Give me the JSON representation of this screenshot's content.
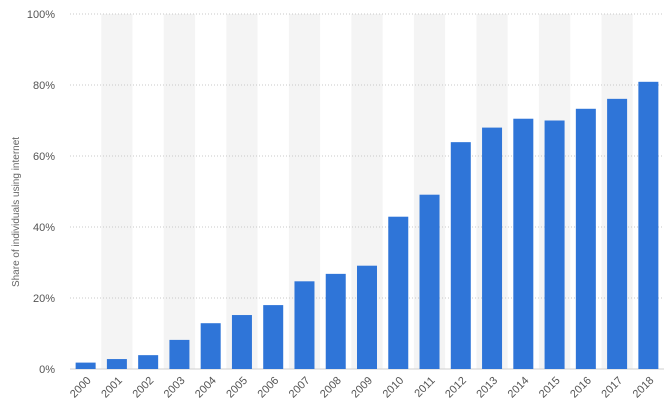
{
  "chart_data": {
    "type": "bar",
    "title": "",
    "xlabel": "",
    "ylabel": "Share of individuals using internet",
    "categories": [
      "2000",
      "2001",
      "2002",
      "2003",
      "2004",
      "2005",
      "2006",
      "2007",
      "2008",
      "2009",
      "2010",
      "2011",
      "2012",
      "2013",
      "2014",
      "2015",
      "2016",
      "2017",
      "2018"
    ],
    "values": [
      1.8,
      2.8,
      3.9,
      8.2,
      12.9,
      15.2,
      18.0,
      24.7,
      26.8,
      29.1,
      42.9,
      49.1,
      63.9,
      68.0,
      70.5,
      70.0,
      73.3,
      76.1,
      80.9
    ],
    "ylim": [
      0,
      100
    ],
    "yticks": [
      {
        "value": 0,
        "label": "0%"
      },
      {
        "value": 20,
        "label": "20%"
      },
      {
        "value": 40,
        "label": "40%"
      },
      {
        "value": 60,
        "label": "60%"
      },
      {
        "value": 80,
        "label": "80%"
      },
      {
        "value": 100,
        "label": "100%"
      }
    ],
    "grid": true,
    "bar_color": "#2f75d8",
    "band_color": "#f4f4f4"
  }
}
